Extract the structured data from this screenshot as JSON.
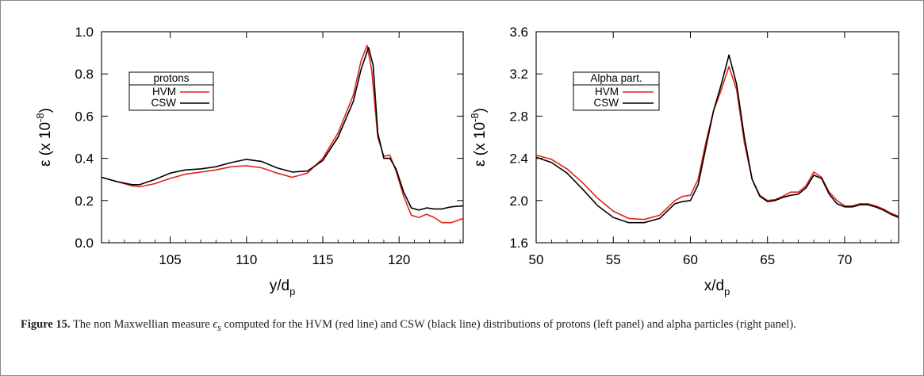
{
  "caption": {
    "label": "Figure 15.",
    "text_before": "The non Maxwellian measure",
    "symbol": "ϵ",
    "symbol_sub": "s",
    "text_after": "computed for the HVM (red line) and CSW (black line) distributions of protons (left panel) and alpha particles (right panel)."
  },
  "colors": {
    "HVM": "#e0241b",
    "CSW": "#000000"
  },
  "chart_data": [
    {
      "type": "line",
      "xlabel": "y/d",
      "xlabel_sub": "p",
      "ylabel": "ε (x 10",
      "ylabel_sup": "-8",
      "ylabel_close": ")",
      "xlim": [
        100.5,
        124.2
      ],
      "ylim": [
        0.0,
        1.0
      ],
      "xticks": [
        105,
        110,
        115,
        120
      ],
      "yticks": [
        0.0,
        0.2,
        0.4,
        0.6,
        0.8,
        1.0
      ],
      "ytick_labels": [
        "0.0",
        "0.2",
        "0.4",
        "0.6",
        "0.8",
        "1.0"
      ],
      "legend": {
        "title": "protons",
        "entries": [
          "HVM",
          "CSW"
        ],
        "position": "upper-left"
      },
      "series": [
        {
          "name": "HVM",
          "color": "#e0241b",
          "x": [
            100.5,
            101.5,
            102.5,
            103.0,
            104.0,
            105.0,
            106.0,
            107.0,
            108.0,
            109.0,
            110.0,
            111.0,
            112.0,
            113.0,
            114.0,
            115.0,
            116.0,
            117.0,
            117.5,
            117.9,
            118.2,
            118.6,
            119.0,
            119.4,
            119.8,
            120.3,
            120.8,
            121.3,
            121.8,
            122.3,
            122.8,
            123.4,
            124.2
          ],
          "values": [
            0.31,
            0.29,
            0.27,
            0.265,
            0.28,
            0.305,
            0.325,
            0.335,
            0.345,
            0.36,
            0.365,
            0.355,
            0.33,
            0.31,
            0.33,
            0.4,
            0.52,
            0.7,
            0.86,
            0.935,
            0.82,
            0.5,
            0.41,
            0.415,
            0.34,
            0.22,
            0.13,
            0.12,
            0.135,
            0.12,
            0.095,
            0.095,
            0.115
          ]
        },
        {
          "name": "CSW",
          "color": "#000000",
          "x": [
            100.5,
            101.5,
            102.5,
            103.0,
            104.0,
            105.0,
            106.0,
            107.0,
            108.0,
            109.0,
            110.0,
            111.0,
            112.0,
            113.0,
            114.0,
            115.0,
            116.0,
            117.0,
            117.5,
            118.0,
            118.3,
            118.6,
            119.0,
            119.4,
            119.8,
            120.3,
            120.8,
            121.3,
            121.8,
            122.3,
            122.8,
            123.4,
            124.2
          ],
          "values": [
            0.31,
            0.29,
            0.275,
            0.275,
            0.3,
            0.33,
            0.345,
            0.35,
            0.36,
            0.38,
            0.395,
            0.385,
            0.355,
            0.335,
            0.34,
            0.39,
            0.5,
            0.67,
            0.82,
            0.925,
            0.84,
            0.52,
            0.4,
            0.4,
            0.35,
            0.24,
            0.165,
            0.155,
            0.165,
            0.16,
            0.16,
            0.17,
            0.175
          ]
        }
      ]
    },
    {
      "type": "line",
      "xlabel": "x/d",
      "xlabel_sub": "p",
      "ylabel": "ε (x 10",
      "ylabel_sup": "-8",
      "ylabel_close": ")",
      "xlim": [
        50.0,
        73.5
      ],
      "ylim": [
        1.6,
        3.6
      ],
      "xticks": [
        50,
        55,
        60,
        65,
        70
      ],
      "yticks": [
        1.6,
        2.0,
        2.4,
        2.8,
        3.2,
        3.6
      ],
      "ytick_labels": [
        "1.6",
        "2.0",
        "2.4",
        "2.8",
        "3.2",
        "3.6"
      ],
      "legend": {
        "title": "Alpha part.",
        "entries": [
          "HVM",
          "CSW"
        ],
        "position": "upper-left"
      },
      "series": [
        {
          "name": "HVM",
          "color": "#e0241b",
          "x": [
            50.0,
            51.0,
            52.0,
            53.0,
            54.0,
            55.0,
            56.0,
            57.0,
            58.0,
            59.0,
            59.5,
            60.0,
            60.5,
            61.0,
            61.5,
            62.0,
            62.5,
            63.0,
            63.5,
            64.0,
            64.5,
            65.0,
            65.5,
            66.0,
            66.5,
            67.0,
            67.5,
            68.0,
            68.5,
            69.0,
            69.5,
            70.0,
            70.5,
            71.0,
            71.5,
            72.0,
            72.5,
            73.0,
            73.5
          ],
          "values": [
            2.43,
            2.39,
            2.3,
            2.17,
            2.02,
            1.9,
            1.83,
            1.82,
            1.86,
            2.0,
            2.04,
            2.05,
            2.2,
            2.55,
            2.85,
            3.05,
            3.27,
            3.05,
            2.55,
            2.2,
            2.05,
            2.0,
            2.01,
            2.04,
            2.08,
            2.08,
            2.14,
            2.27,
            2.22,
            2.08,
            2.0,
            1.95,
            1.95,
            1.97,
            1.97,
            1.95,
            1.92,
            1.88,
            1.85
          ]
        },
        {
          "name": "CSW",
          "color": "#000000",
          "x": [
            50.0,
            51.0,
            52.0,
            53.0,
            54.0,
            55.0,
            56.0,
            57.0,
            58.0,
            59.0,
            59.5,
            60.0,
            60.5,
            61.0,
            61.5,
            62.0,
            62.5,
            63.0,
            63.5,
            64.0,
            64.5,
            65.0,
            65.5,
            66.0,
            66.5,
            67.0,
            67.5,
            68.0,
            68.5,
            69.0,
            69.5,
            70.0,
            70.5,
            71.0,
            71.5,
            72.0,
            72.5,
            73.0,
            73.5
          ],
          "values": [
            2.41,
            2.36,
            2.26,
            2.11,
            1.95,
            1.84,
            1.79,
            1.79,
            1.83,
            1.97,
            1.99,
            2.0,
            2.15,
            2.5,
            2.85,
            3.1,
            3.38,
            3.1,
            2.6,
            2.2,
            2.04,
            1.99,
            2.0,
            2.03,
            2.05,
            2.06,
            2.12,
            2.24,
            2.21,
            2.06,
            1.97,
            1.94,
            1.94,
            1.96,
            1.96,
            1.94,
            1.91,
            1.87,
            1.84
          ]
        }
      ]
    }
  ]
}
